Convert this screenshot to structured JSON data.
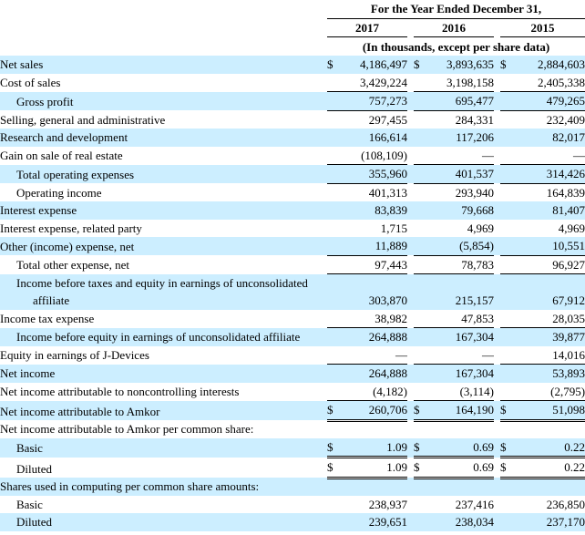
{
  "currency_symbol": "$",
  "colors": {
    "highlight": "#cceeff",
    "rule": "#000000",
    "background": "#ffffff"
  },
  "header": {
    "title": "For the Year Ended December 31,",
    "years": [
      "2017",
      "2016",
      "2015"
    ],
    "units_note": "(In thousands, except per share data)"
  },
  "rows": [
    {
      "label": "Net sales",
      "indent": 0,
      "dollar": true,
      "highlight": true,
      "values": [
        "4,186,497",
        "3,893,635",
        "2,884,603"
      ]
    },
    {
      "label": "Cost of sales",
      "indent": 0,
      "dollar": false,
      "highlight": false,
      "values": [
        "3,429,224",
        "3,198,158",
        "2,405,338"
      ]
    },
    {
      "label": "Gross profit",
      "indent": 1,
      "dollar": false,
      "highlight": true,
      "rule_top": true,
      "rule_bottom": true,
      "values": [
        "757,273",
        "695,477",
        "479,265"
      ]
    },
    {
      "label": "Selling, general and administrative",
      "indent": 0,
      "dollar": false,
      "highlight": false,
      "values": [
        "297,455",
        "284,331",
        "232,409"
      ]
    },
    {
      "label": "Research and development",
      "indent": 0,
      "dollar": false,
      "highlight": true,
      "values": [
        "166,614",
        "117,206",
        "82,017"
      ]
    },
    {
      "label": "Gain on sale of real estate",
      "indent": 0,
      "dollar": false,
      "highlight": false,
      "values": [
        "(108,109)",
        "—",
        "—"
      ]
    },
    {
      "label": "Total operating expenses",
      "indent": 1,
      "dollar": false,
      "highlight": true,
      "rule_top": true,
      "rule_bottom": true,
      "values": [
        "355,960",
        "401,537",
        "314,426"
      ]
    },
    {
      "label": "Operating income",
      "indent": 1,
      "dollar": false,
      "highlight": false,
      "values": [
        "401,313",
        "293,940",
        "164,839"
      ]
    },
    {
      "label": "Interest expense",
      "indent": 0,
      "dollar": false,
      "highlight": true,
      "values": [
        "83,839",
        "79,668",
        "81,407"
      ]
    },
    {
      "label": "Interest expense, related party",
      "indent": 0,
      "dollar": false,
      "highlight": false,
      "values": [
        "1,715",
        "4,969",
        "4,969"
      ]
    },
    {
      "label": "Other (income) expense, net",
      "indent": 0,
      "dollar": false,
      "highlight": true,
      "values": [
        "11,889",
        "(5,854)",
        "10,551"
      ]
    },
    {
      "label": "Total other expense, net",
      "indent": 1,
      "dollar": false,
      "highlight": false,
      "rule_top": true,
      "rule_bottom": true,
      "values": [
        "97,443",
        "78,783",
        "96,927"
      ]
    },
    {
      "label": "Income before taxes and equity in earnings of unconsolidated",
      "label2": "affiliate",
      "indent": 1,
      "dollar": false,
      "highlight": true,
      "values": [
        "303,870",
        "215,157",
        "67,912"
      ]
    },
    {
      "label": "Income tax expense",
      "indent": 0,
      "dollar": false,
      "highlight": false,
      "values": [
        "38,982",
        "47,853",
        "28,035"
      ]
    },
    {
      "label": "Income before equity in earnings of unconsolidated affiliate",
      "indent": 1,
      "dollar": false,
      "highlight": true,
      "rule_top": true,
      "values": [
        "264,888",
        "167,304",
        "39,877"
      ]
    },
    {
      "label": "Equity in earnings of J-Devices",
      "indent": 0,
      "dollar": false,
      "highlight": false,
      "values": [
        "—",
        "—",
        "14,016"
      ]
    },
    {
      "label": "Net income",
      "indent": 0,
      "dollar": false,
      "highlight": true,
      "rule_top": true,
      "values": [
        "264,888",
        "167,304",
        "53,893"
      ]
    },
    {
      "label": "Net income attributable to noncontrolling interests",
      "indent": 0,
      "dollar": false,
      "highlight": false,
      "values": [
        "(4,182)",
        "(3,114)",
        "(2,795)"
      ]
    },
    {
      "label": "Net income attributable to Amkor",
      "indent": 0,
      "dollar": true,
      "highlight": true,
      "rule_top": true,
      "double_bottom": true,
      "values": [
        "260,706",
        "164,190",
        "51,098"
      ]
    },
    {
      "label": "Net income attributable to Amkor per common share:",
      "indent": 0,
      "dollar": false,
      "highlight": false,
      "values": [
        "",
        "",
        ""
      ]
    },
    {
      "label": "Basic",
      "indent": 1,
      "dollar": true,
      "highlight": true,
      "double_bottom": true,
      "values": [
        "1.09",
        "0.69",
        "0.22"
      ]
    },
    {
      "label": "Diluted",
      "indent": 1,
      "dollar": true,
      "highlight": false,
      "double_bottom": true,
      "values": [
        "1.09",
        "0.69",
        "0.22"
      ]
    },
    {
      "label": "Shares used in computing per common share amounts:",
      "indent": 0,
      "dollar": false,
      "highlight": true,
      "values": [
        "",
        "",
        ""
      ]
    },
    {
      "label": "Basic",
      "indent": 1,
      "dollar": false,
      "highlight": false,
      "values": [
        "238,937",
        "237,416",
        "236,850"
      ]
    },
    {
      "label": "Diluted",
      "indent": 1,
      "dollar": false,
      "highlight": true,
      "values": [
        "239,651",
        "238,034",
        "237,170"
      ]
    }
  ]
}
